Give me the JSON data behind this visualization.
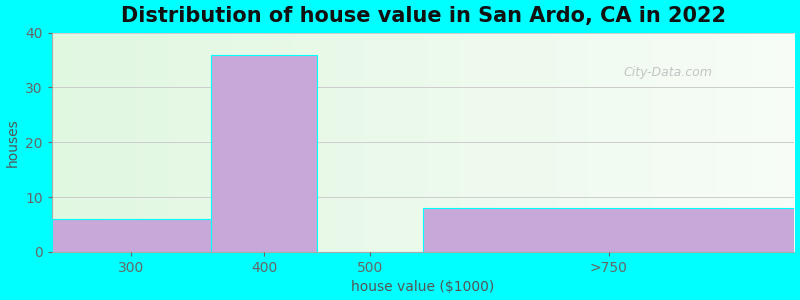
{
  "title": "Distribution of house value in San Ardo, CA in 2022",
  "xlabel": "house value ($1000)",
  "ylabel": "houses",
  "bin_edges": [
    200,
    350,
    450,
    550,
    900
  ],
  "tick_labels": [
    "300",
    "400",
    "500",
    ">750"
  ],
  "values": [
    6,
    36,
    0,
    8
  ],
  "bar_color": "#c8a8d8",
  "bar_edgecolor": "#00FFFF",
  "ylim": [
    0,
    40
  ],
  "yticks": [
    0,
    10,
    20,
    30,
    40
  ],
  "background_color": "#00FFFF",
  "title_fontsize": 15,
  "axis_label_fontsize": 10,
  "tick_fontsize": 10,
  "watermark": "City-Data.com"
}
